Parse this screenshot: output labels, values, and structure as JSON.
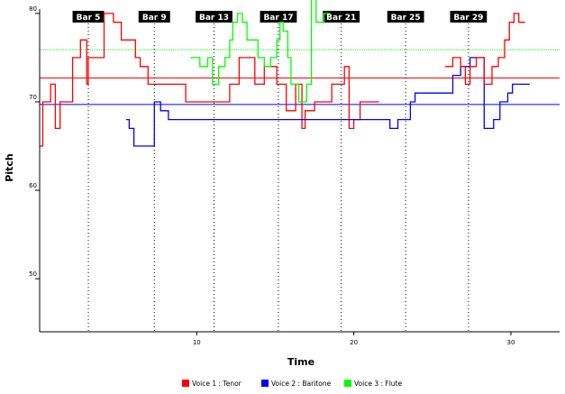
{
  "chart_data": {
    "type": "line",
    "xlabel": "Time",
    "ylabel": "Pitch",
    "xlim": [
      0,
      33.1
    ],
    "ylim": [
      44,
      80.5
    ],
    "x_ticks": [
      10,
      20,
      30
    ],
    "y_ticks": [
      50,
      60,
      70,
      80
    ],
    "y_tick_labels": [
      "50",
      "60",
      "70",
      "80"
    ],
    "grid": false,
    "legend_position": "bottom",
    "bar_markers": [
      {
        "label": "Bar 5",
        "x": 3.1
      },
      {
        "label": "Bar 9",
        "x": 7.3
      },
      {
        "label": "Bar 13",
        "x": 11.1
      },
      {
        "label": "Bar 17",
        "x": 15.2
      },
      {
        "label": "Bar 21",
        "x": 19.2
      },
      {
        "label": "Bar 25",
        "x": 23.3
      },
      {
        "label": "Bar 29",
        "x": 27.3
      }
    ],
    "reference_lines": [
      {
        "series": "Voice 1 : Tenor",
        "y": 72.7
      },
      {
        "series": "Voice 2 : Baritone",
        "y": 69.7
      },
      {
        "series": "Voice 3 : Flute",
        "y": 75.9
      }
    ],
    "series": [
      {
        "name": "Voice 1 : Tenor",
        "color": "#ff0000",
        "points": [
          [
            0.0,
            65
          ],
          [
            0.2,
            70
          ],
          [
            0.7,
            72
          ],
          [
            1.0,
            67
          ],
          [
            1.3,
            70
          ],
          [
            1.6,
            70
          ],
          [
            2.1,
            75
          ],
          [
            2.6,
            77
          ],
          [
            3.0,
            72
          ],
          [
            3.1,
            75
          ],
          [
            4.1,
            80
          ],
          [
            4.7,
            79
          ],
          [
            5.2,
            77
          ],
          [
            6.1,
            75
          ],
          [
            6.4,
            74
          ],
          [
            6.9,
            72
          ],
          [
            9.3,
            70
          ],
          [
            10.7,
            70
          ],
          [
            12.1,
            72
          ],
          [
            12.7,
            75
          ],
          [
            13.7,
            72
          ],
          [
            14.3,
            74
          ],
          [
            15.1,
            72
          ],
          [
            15.7,
            69
          ],
          [
            16.3,
            72
          ],
          [
            16.7,
            67
          ],
          [
            16.9,
            69
          ],
          [
            17.5,
            70
          ],
          [
            18.0,
            70
          ],
          [
            18.6,
            72
          ],
          [
            19.1,
            72
          ],
          [
            19.4,
            74
          ],
          [
            19.7,
            67
          ],
          [
            20.0,
            68
          ],
          [
            20.4,
            70
          ],
          [
            21.2,
            70
          ]
        ]
      },
      {
        "name": "Voice 2 : Baritone",
        "color": "#0000ff",
        "points": [
          [
            5.5,
            68
          ],
          [
            5.7,
            67
          ],
          [
            6.0,
            65
          ],
          [
            7.3,
            70
          ],
          [
            7.7,
            69
          ],
          [
            8.2,
            68
          ],
          [
            22.3,
            67
          ],
          [
            22.8,
            68
          ],
          [
            23.6,
            70
          ],
          [
            23.9,
            71
          ],
          [
            24.3,
            71
          ],
          [
            26.3,
            73
          ],
          [
            26.8,
            74
          ],
          [
            27.4,
            75
          ],
          [
            28.3,
            67
          ],
          [
            28.9,
            68
          ],
          [
            29.3,
            70
          ],
          [
            29.8,
            71
          ],
          [
            30.1,
            72
          ],
          [
            30.8,
            72
          ]
        ]
      },
      {
        "name": "Voice 3 : Flute",
        "color": "#00ff00",
        "points": [
          [
            9.6,
            75
          ],
          [
            10.2,
            74
          ],
          [
            10.7,
            75
          ],
          [
            11.0,
            72
          ],
          [
            11.4,
            74
          ],
          [
            11.8,
            75
          ],
          [
            12.1,
            77
          ],
          [
            12.3,
            79
          ],
          [
            12.6,
            80
          ],
          [
            12.9,
            79
          ],
          [
            13.2,
            77
          ],
          [
            13.9,
            75
          ],
          [
            14.3,
            74
          ],
          [
            14.7,
            75
          ],
          [
            15.1,
            77
          ],
          [
            15.3,
            79
          ],
          [
            15.5,
            78
          ],
          [
            15.8,
            75
          ],
          [
            16.0,
            72
          ],
          [
            16.5,
            70
          ],
          [
            17.0,
            72
          ],
          [
            17.3,
            82
          ],
          [
            17.6,
            79
          ],
          [
            18.1,
            80
          ]
        ]
      },
      {
        "name": "Voice 1 : Tenor",
        "color": "#ff0000",
        "points": [
          [
            25.8,
            74
          ],
          [
            26.3,
            75
          ],
          [
            26.8,
            74
          ],
          [
            27.1,
            72
          ],
          [
            27.4,
            74
          ],
          [
            27.8,
            75
          ],
          [
            28.3,
            72
          ],
          [
            28.8,
            74
          ],
          [
            29.2,
            75
          ],
          [
            29.6,
            77
          ],
          [
            29.9,
            79
          ],
          [
            30.2,
            80
          ],
          [
            30.5,
            79
          ]
        ]
      }
    ],
    "legend": [
      {
        "label": "Voice 1 : Tenor",
        "color": "#ff0000"
      },
      {
        "label": "Voice 2 : Baritone",
        "color": "#0000ff"
      },
      {
        "label": "Voice 3 : Flute",
        "color": "#00ff00"
      }
    ]
  }
}
